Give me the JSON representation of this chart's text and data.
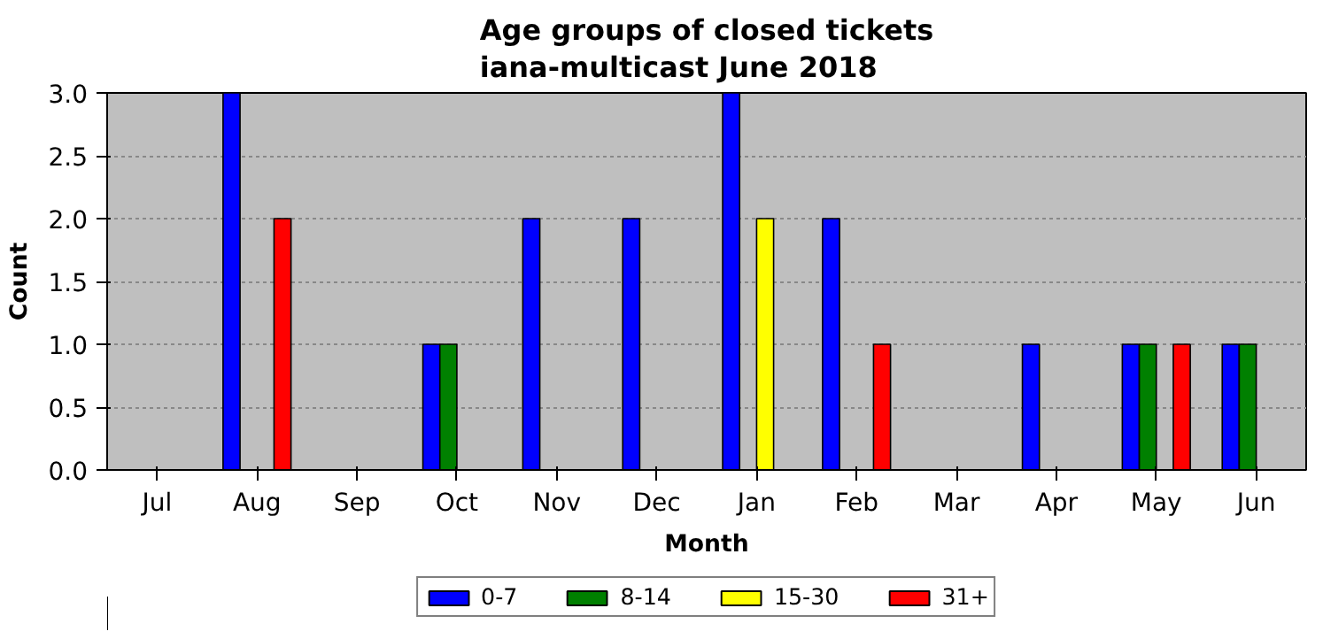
{
  "chart_data": {
    "type": "bar",
    "title": "Age groups of closed tickets\niana-multicast June 2018",
    "xlabel": "Month",
    "ylabel": "Count",
    "categories": [
      "Jul",
      "Aug",
      "Sep",
      "Oct",
      "Nov",
      "Dec",
      "Jan",
      "Feb",
      "Mar",
      "Apr",
      "May",
      "Jun"
    ],
    "series": [
      {
        "name": "0-7",
        "color": "#0000ff",
        "values": [
          0,
          3,
          0,
          1,
          2,
          2,
          3,
          2,
          0,
          1,
          1,
          1
        ]
      },
      {
        "name": "8-14",
        "color": "#008000",
        "values": [
          0,
          0,
          0,
          1,
          0,
          0,
          0,
          0,
          0,
          0,
          1,
          1
        ]
      },
      {
        "name": "15-30",
        "color": "#ffff00",
        "values": [
          0,
          0,
          0,
          0,
          0,
          0,
          2,
          0,
          0,
          0,
          0,
          0
        ]
      },
      {
        "name": "31+",
        "color": "#ff0000",
        "values": [
          0,
          2,
          0,
          0,
          0,
          0,
          0,
          1,
          0,
          0,
          1,
          0
        ]
      }
    ],
    "ylim": [
      0,
      3
    ],
    "yticks": [
      {
        "value": 0,
        "label": "0.0"
      },
      {
        "value": 0.5,
        "label": "0.5"
      },
      {
        "value": 1,
        "label": "1.0"
      },
      {
        "value": 1.5,
        "label": "1.5"
      },
      {
        "value": 2,
        "label": "2.0"
      },
      {
        "value": 2.5,
        "label": "2.5"
      },
      {
        "value": 3,
        "label": "3.0"
      }
    ],
    "grid": "y",
    "legend": "bottom"
  }
}
